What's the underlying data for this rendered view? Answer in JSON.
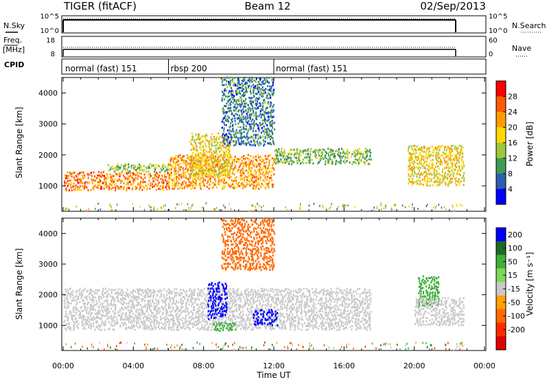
{
  "header": {
    "radar": "TIGER (fitACF)",
    "beam": "Beam 12",
    "date": "02/Sep/2013"
  },
  "strips": {
    "nsky_label": "N.Sky",
    "nsearch_label": "N.Search",
    "noise_ticks_left": [
      "10^5",
      "10^0"
    ],
    "noise_ticks_right": [
      "10^5",
      "10^0"
    ],
    "freq_label": "Freq.",
    "freq_unit": "[MHz]",
    "freq_ticks": [
      "18",
      "8"
    ],
    "nave_label": "Nave",
    "nave_ticks": [
      "60",
      "0"
    ],
    "cpid_label": "CPID"
  },
  "cpid_segments": [
    {
      "label": "normal (fast) 151",
      "start": 0,
      "end": 6
    },
    {
      "label": "rbsp 200",
      "start": 6,
      "end": 12
    },
    {
      "label": "normal (fast) 151",
      "start": 12,
      "end": 24
    }
  ],
  "panels": {
    "ylabel": "Slant Range [km]",
    "yticks": [
      "1000",
      "2000",
      "3000",
      "4000"
    ],
    "xticks": [
      "00:00",
      "04:00",
      "08:00",
      "12:00",
      "16:00",
      "20:00",
      "00:00"
    ],
    "xlabel": "Time UT"
  },
  "colorbars": {
    "power_title": "Power [dB]",
    "power_ticks": [
      "28",
      "24",
      "20",
      "16",
      "12",
      "8",
      "4"
    ],
    "power_colors": [
      "#ff0000",
      "#ff5a00",
      "#ff9b00",
      "#ffd800",
      "#9ec83c",
      "#3f9a55",
      "#2d5fb0",
      "#0000ff"
    ],
    "velocity_title": "Velocity [m s⁻¹]",
    "velocity_ticks": [
      "200",
      "100",
      "50",
      "15",
      "-15",
      "-50",
      "-100",
      "-200"
    ],
    "velocity_colors": [
      "#0000ff",
      "#1f6a26",
      "#3fae3a",
      "#7fd857",
      "#c9c9c9",
      "#ffa000",
      "#ff6a00",
      "#ff2a00",
      "#e00000"
    ]
  },
  "chart_data": [
    {
      "type": "heatmap",
      "title": "Power [dB]",
      "xlabel": "Time UT",
      "ylabel": "Slant Range [km]",
      "xlim": [
        "00:00",
        "24:00"
      ],
      "ylim": [
        180,
        4500
      ],
      "zlim": [
        0,
        32
      ],
      "bands": [
        {
          "t0": 0.0,
          "t1": 6.0,
          "r0": 850,
          "r1": 1450,
          "z": 24
        },
        {
          "t0": 2.5,
          "t1": 6.0,
          "r0": 1450,
          "r1": 1700,
          "z": 14
        },
        {
          "t0": 6.0,
          "t1": 12.0,
          "r0": 900,
          "r1": 2000,
          "z": 22
        },
        {
          "t0": 7.2,
          "t1": 9.5,
          "r0": 1300,
          "r1": 2700,
          "z": 18
        },
        {
          "t0": 9.0,
          "t1": 12.0,
          "r0": 2300,
          "r1": 4500,
          "z": 8
        },
        {
          "t0": 12.0,
          "t1": 17.5,
          "r0": 1700,
          "r1": 2200,
          "z": 12
        },
        {
          "t0": 19.6,
          "t1": 22.8,
          "r0": 1000,
          "r1": 2300,
          "z": 18
        }
      ]
    },
    {
      "type": "heatmap",
      "title": "Velocity [m s⁻¹]",
      "xlabel": "Time UT",
      "ylabel": "Slant Range [km]",
      "xlim": [
        "00:00",
        "24:00"
      ],
      "ylim": [
        180,
        4500
      ],
      "zlim": [
        -200,
        200
      ],
      "bands": [
        {
          "t0": 0.0,
          "t1": 17.5,
          "r0": 850,
          "r1": 2200,
          "z": 0
        },
        {
          "t0": 8.2,
          "t1": 9.3,
          "r0": 1200,
          "r1": 2400,
          "z": 210
        },
        {
          "t0": 10.8,
          "t1": 12.2,
          "r0": 1000,
          "r1": 1500,
          "z": 210
        },
        {
          "t0": 8.5,
          "t1": 9.8,
          "r0": 800,
          "r1": 1100,
          "z": 60
        },
        {
          "t0": 9.0,
          "t1": 12.0,
          "r0": 2800,
          "r1": 4500,
          "z": -60
        },
        {
          "t0": 20.2,
          "t1": 21.4,
          "r0": 1600,
          "r1": 2600,
          "z": 60
        },
        {
          "t0": 20.0,
          "t1": 22.8,
          "r0": 1000,
          "r1": 1900,
          "z": 0
        }
      ]
    }
  ]
}
